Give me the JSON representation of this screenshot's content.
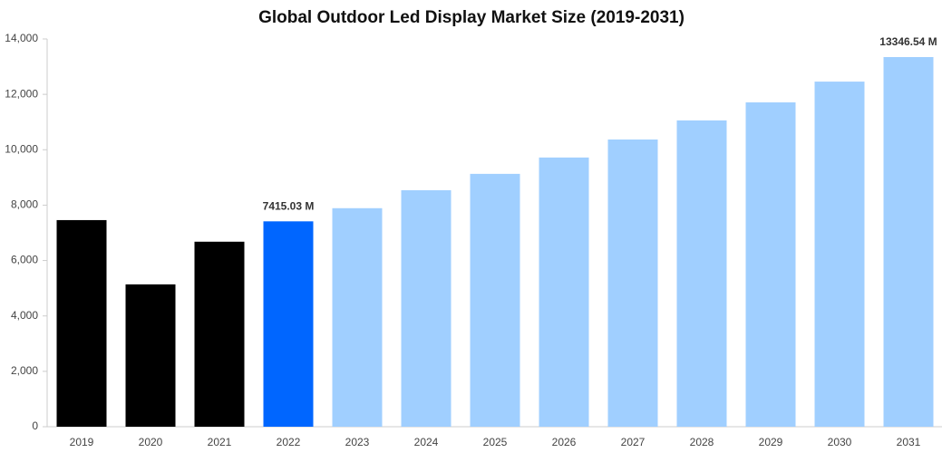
{
  "chart_data": {
    "type": "bar",
    "title": "Global Outdoor Led Display Market Size (2019-2031)",
    "categories": [
      "2019",
      "2020",
      "2021",
      "2022",
      "2023",
      "2024",
      "2025",
      "2026",
      "2027",
      "2028",
      "2029",
      "2030",
      "2031"
    ],
    "values": [
      7460,
      5140,
      6680,
      7415.03,
      7890,
      8540,
      9130,
      9720,
      10370,
      11060,
      11710,
      12460,
      13346.54
    ],
    "value_labels": [
      null,
      null,
      null,
      "7415.03 M",
      null,
      null,
      null,
      null,
      null,
      null,
      null,
      null,
      "13346.54 M"
    ],
    "colors": [
      "#000000",
      "#000000",
      "#000000",
      "#0066ff",
      "#a0cfff",
      "#a0cfff",
      "#a0cfff",
      "#a0cfff",
      "#a0cfff",
      "#a0cfff",
      "#a0cfff",
      "#a0cfff",
      "#a0cfff"
    ],
    "ylim": [
      0,
      14000
    ],
    "yticks": [
      0,
      {
        "value": 2000,
        "label": "2,000"
      },
      {
        "value": 4000,
        "label": "4,000"
      },
      {
        "value": 6000,
        "label": "6,000"
      },
      {
        "value": 8000,
        "label": "8,000"
      },
      {
        "value": 10000,
        "label": "10,000"
      },
      {
        "value": 12000,
        "label": "12,000"
      },
      {
        "value": 14000,
        "label": "14,000"
      }
    ],
    "grid": false
  }
}
